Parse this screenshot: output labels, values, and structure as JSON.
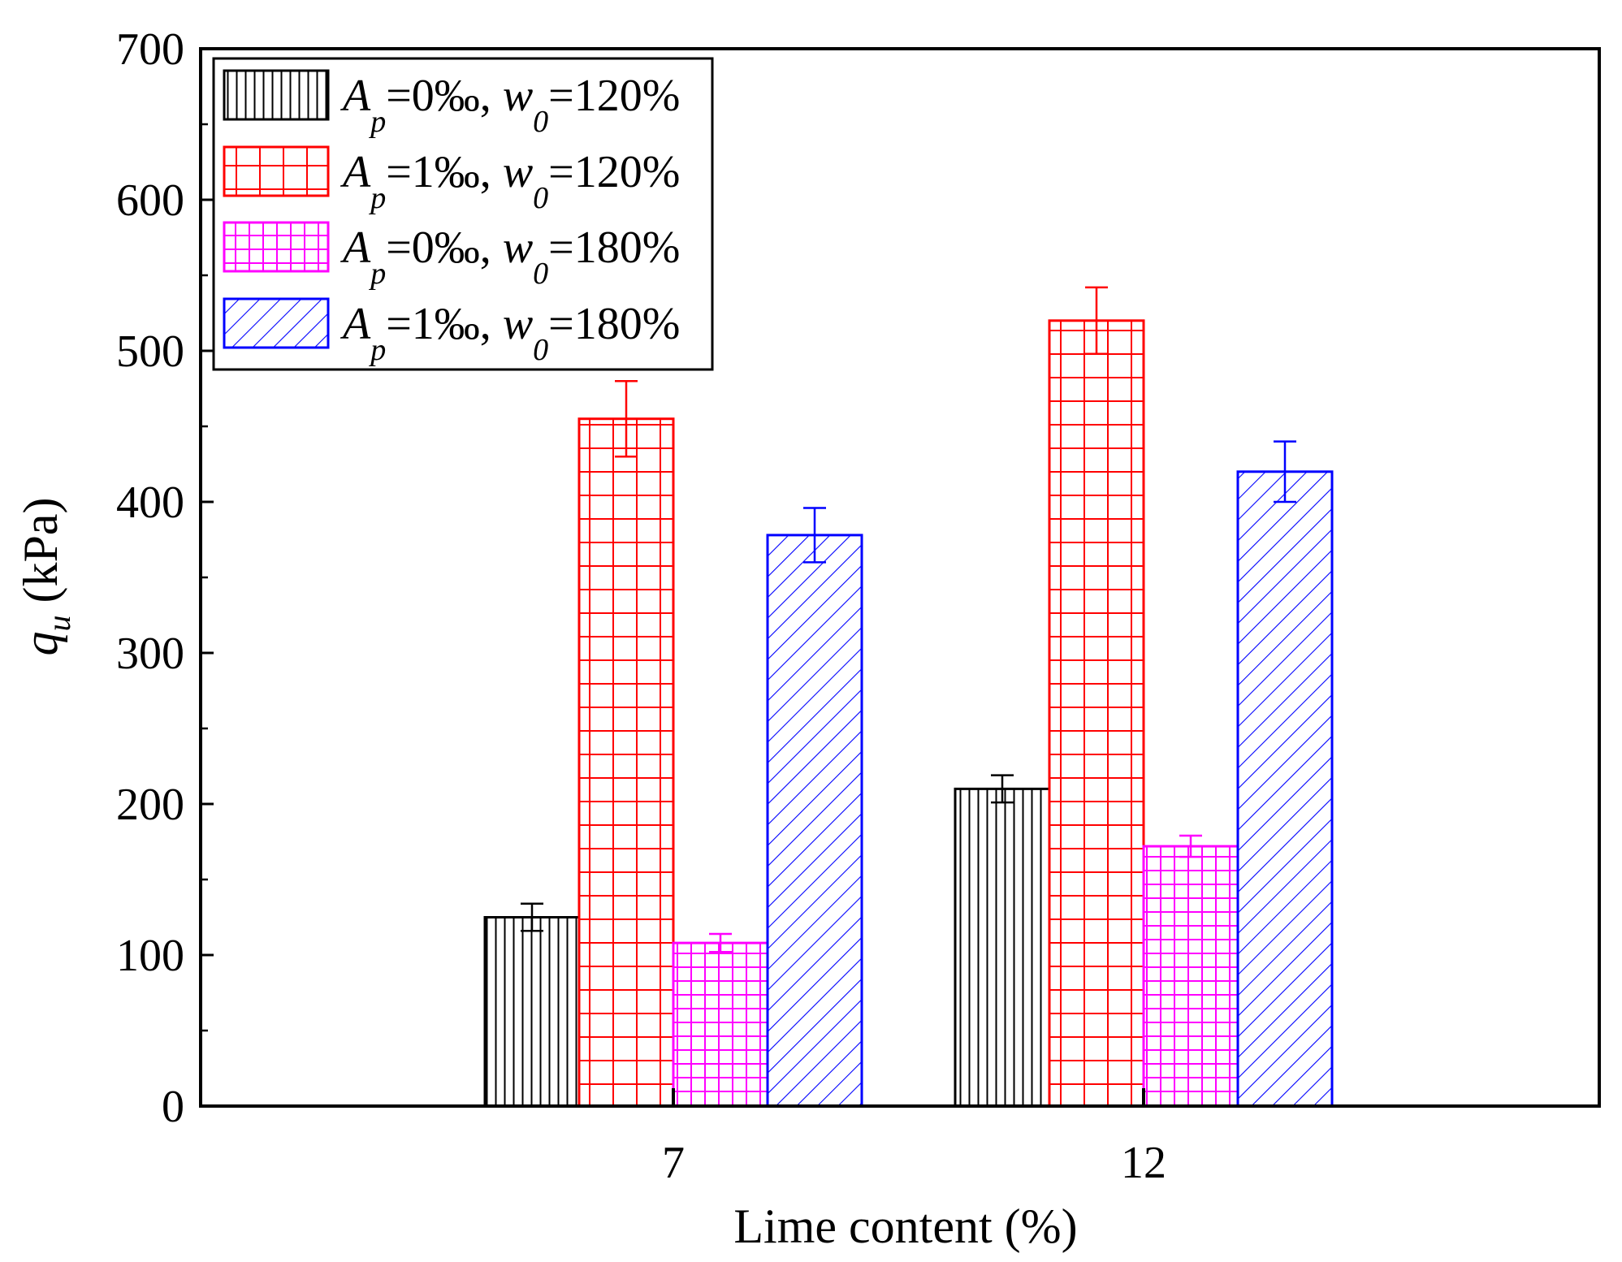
{
  "chart_data": {
    "type": "bar",
    "title": "",
    "xlabel": "Lime content (%)",
    "ylabel": {
      "symbol": "q",
      "subscript": "u",
      "unit": " (kPa)"
    },
    "categories": [
      "7",
      "12"
    ],
    "ylim": [
      0,
      700
    ],
    "yticks": [
      "0",
      "100",
      "200",
      "300",
      "400",
      "500",
      "600",
      "700"
    ],
    "grid": false,
    "legend_position": "top-left",
    "series": [
      {
        "name": "A_p=0‰, w_0=120%",
        "legend": {
          "a": "A",
          "p": "p",
          "eq1": "=0‰, ",
          "w": "w",
          "zero": "0",
          "eq2": "=120%"
        },
        "color": "#000000",
        "pattern": "vertical-lines",
        "values": [
          125,
          210
        ],
        "errors": [
          9,
          9
        ]
      },
      {
        "name": "A_p=1‰, w_0=120%",
        "legend": {
          "a": "A",
          "p": "p",
          "eq1": "=1‰, ",
          "w": "w",
          "zero": "0",
          "eq2": "=120%"
        },
        "color": "#ff0000",
        "pattern": "coarse-grid",
        "values": [
          455,
          520
        ],
        "errors": [
          25,
          22
        ]
      },
      {
        "name": "A_p=0‰, w_0=180%",
        "legend": {
          "a": "A",
          "p": "p",
          "eq1": "=0‰, ",
          "w": "w",
          "zero": "0",
          "eq2": "=180%"
        },
        "color": "#ff00ff",
        "pattern": "fine-grid",
        "values": [
          108,
          172
        ],
        "errors": [
          6,
          7
        ]
      },
      {
        "name": "A_p=1‰, w_0=180%",
        "legend": {
          "a": "A",
          "p": "p",
          "eq1": "=1‰, ",
          "w": "w",
          "zero": "0",
          "eq2": "=180%"
        },
        "color": "#0000ff",
        "pattern": "diagonal-lines",
        "values": [
          378,
          420
        ],
        "errors": [
          18,
          20
        ]
      }
    ]
  }
}
